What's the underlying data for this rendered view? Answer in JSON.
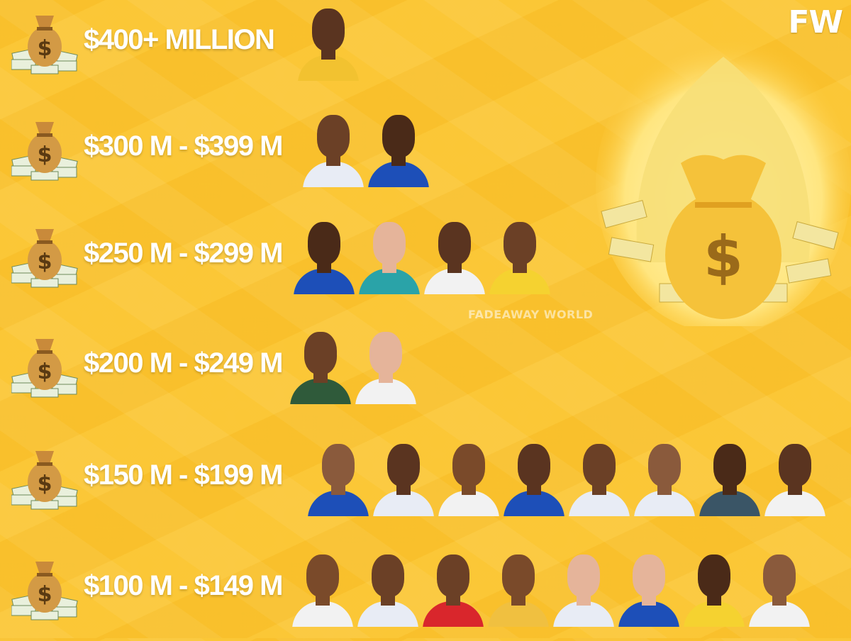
{
  "logo": "FW",
  "watermark": "FADEAWAY WORLD",
  "colors": {
    "background": "#fbc431",
    "label_text": "#ffffff"
  },
  "icons": {
    "tier_icon": "money-bag-icon",
    "hero_image": "money-pile-bag-icon"
  },
  "tiers": [
    {
      "label": "$400+ MILLION",
      "players": [
        {
          "jersey": "#f2c230",
          "skin": "#5a3420"
        }
      ]
    },
    {
      "label": "$300 M - $399 M",
      "players": [
        {
          "jersey": "#e8ecf5",
          "skin": "#6b4026"
        },
        {
          "jersey": "#1d4fb8",
          "skin": "#4a2a18"
        }
      ]
    },
    {
      "label": "$250 M - $299 M",
      "players": [
        {
          "jersey": "#1d4fb8",
          "skin": "#4a2a18"
        },
        {
          "jersey": "#2aa3a8",
          "skin": "#e5b49a"
        },
        {
          "jersey": "#f2f2f2",
          "skin": "#5a3420"
        },
        {
          "jersey": "#f5d230",
          "skin": "#6b4026"
        }
      ]
    },
    {
      "label": "$200 M - $249 M",
      "players": [
        {
          "jersey": "#2f5a3a",
          "skin": "#6b4026"
        },
        {
          "jersey": "#f2f2f2",
          "skin": "#e5b49a"
        }
      ]
    },
    {
      "label": "$150 M - $199 M",
      "players": [
        {
          "jersey": "#1d4fb8",
          "skin": "#8a5a3c"
        },
        {
          "jersey": "#e8ecf5",
          "skin": "#5a3420"
        },
        {
          "jersey": "#f2f2f2",
          "skin": "#7a4a2a"
        },
        {
          "jersey": "#1d4fb8",
          "skin": "#5a3420"
        },
        {
          "jersey": "#e8ecf5",
          "skin": "#6b4026"
        },
        {
          "jersey": "#e8ecf5",
          "skin": "#8a5a3c"
        },
        {
          "jersey": "#3a5566",
          "skin": "#4a2a18"
        },
        {
          "jersey": "#f2f2f2",
          "skin": "#5a3420"
        }
      ]
    },
    {
      "label": "$100 M - $149 M",
      "players": [
        {
          "jersey": "#f2f2f2",
          "skin": "#7a4a2a"
        },
        {
          "jersey": "#e8ecf5",
          "skin": "#6b4026"
        },
        {
          "jersey": "#d9262c",
          "skin": "#6b4026"
        },
        {
          "jersey": "#f0c040",
          "skin": "#7a4a2a"
        },
        {
          "jersey": "#e8ecf5",
          "skin": "#e5b49a"
        },
        {
          "jersey": "#1d4fb8",
          "skin": "#e5b49a"
        },
        {
          "jersey": "#f5d230",
          "skin": "#4a2a18"
        },
        {
          "jersey": "#f2f2f2",
          "skin": "#8a5a3c"
        }
      ]
    }
  ]
}
